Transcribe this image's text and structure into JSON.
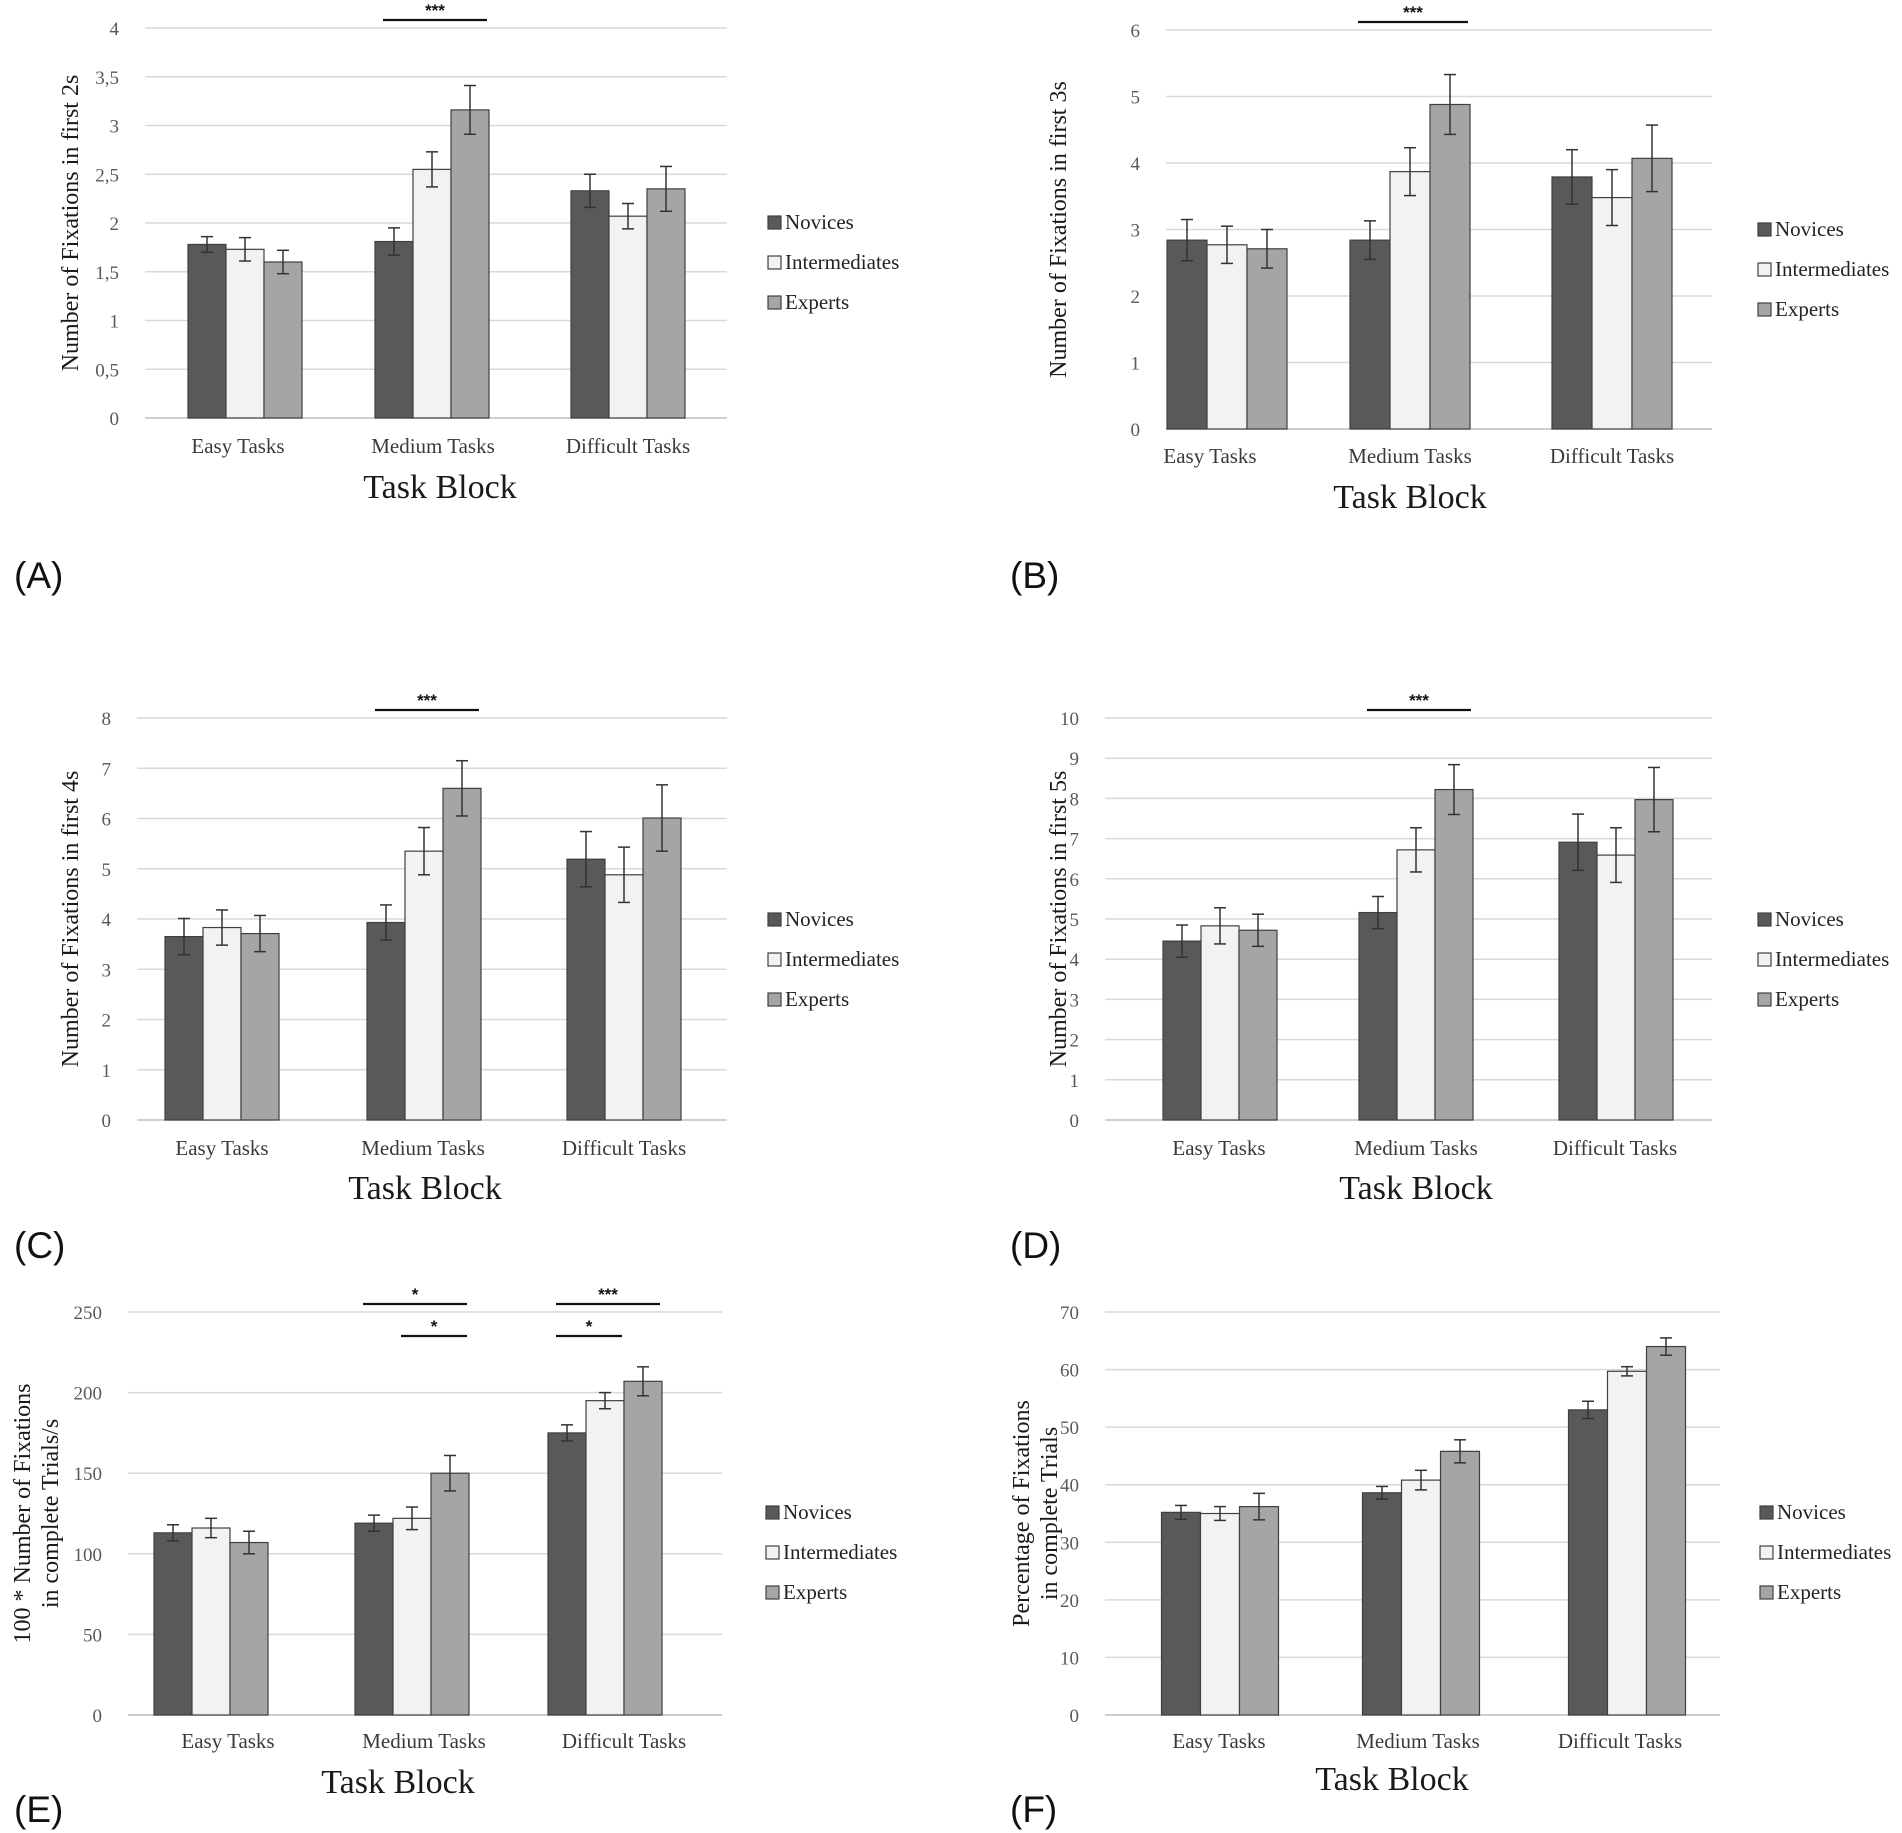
{
  "series_names": [
    "Novices",
    "Intermediates",
    "Experts"
  ],
  "colors": {
    "novices": "#595959",
    "intermediates": "#f2f2f2",
    "experts": "#a5a5a5",
    "grid": "#d9d9d9",
    "bar_stroke": "#3f3f3f"
  },
  "chart_data": [
    {
      "panel": "(A)",
      "type": "bar",
      "categories": [
        "Easy Tasks",
        "Medium Tasks",
        "Difficult Tasks"
      ],
      "xlabel": "Task Block",
      "ylabel": [
        "Number of Fixations in first 2s"
      ],
      "ylim": [
        0,
        4
      ],
      "yticks": [
        "0",
        "0,5",
        "1",
        "1,5",
        "2",
        "2,5",
        "3",
        "3,5",
        "4"
      ],
      "series": [
        {
          "name": "Novices",
          "values": [
            1.78,
            1.81,
            2.33
          ],
          "errors": [
            0.08,
            0.14,
            0.17
          ]
        },
        {
          "name": "Intermediates",
          "values": [
            1.73,
            2.55,
            2.07
          ],
          "errors": [
            0.12,
            0.18,
            0.13
          ]
        },
        {
          "name": "Experts",
          "values": [
            1.6,
            3.16,
            2.35
          ],
          "errors": [
            0.12,
            0.25,
            0.23
          ]
        }
      ],
      "annotations": [
        {
          "category": 1,
          "from": 0,
          "to": 2,
          "label": "***"
        }
      ]
    },
    {
      "panel": "(B)",
      "type": "bar",
      "categories": [
        "Easy Tasks",
        "Medium Tasks",
        "Difficult Tasks"
      ],
      "xlabel": "Task Block",
      "ylabel": [
        "Number of Fixations in first 3s"
      ],
      "ylim": [
        0,
        6
      ],
      "yticks": [
        "0",
        "1",
        "2",
        "3",
        "4",
        "5",
        "6"
      ],
      "series": [
        {
          "name": "Novices",
          "values": [
            2.84,
            2.84,
            3.79
          ],
          "errors": [
            0.31,
            0.29,
            0.41
          ]
        },
        {
          "name": "Intermediates",
          "values": [
            2.77,
            3.87,
            3.48
          ],
          "errors": [
            0.28,
            0.36,
            0.42
          ]
        },
        {
          "name": "Experts",
          "values": [
            2.71,
            4.88,
            4.07
          ],
          "errors": [
            0.29,
            0.45,
            0.5
          ]
        }
      ],
      "annotations": [
        {
          "category": 1,
          "from": 0,
          "to": 2,
          "label": "***"
        }
      ]
    },
    {
      "panel": "(C)",
      "type": "bar",
      "categories": [
        "Easy Tasks",
        "Medium Tasks",
        "Difficult Tasks"
      ],
      "xlabel": "Task Block",
      "ylabel": [
        "Number of Fixations in first 4s"
      ],
      "ylim": [
        0,
        8
      ],
      "yticks": [
        "0",
        "1",
        "2",
        "3",
        "4",
        "5",
        "6",
        "7",
        "8"
      ],
      "series": [
        {
          "name": "Novices",
          "values": [
            3.65,
            3.93,
            5.19
          ],
          "errors": [
            0.36,
            0.35,
            0.55
          ]
        },
        {
          "name": "Intermediates",
          "values": [
            3.83,
            5.35,
            4.88
          ],
          "errors": [
            0.35,
            0.47,
            0.55
          ]
        },
        {
          "name": "Experts",
          "values": [
            3.71,
            6.6,
            6.01
          ],
          "errors": [
            0.36,
            0.55,
            0.66
          ]
        }
      ],
      "annotations": [
        {
          "category": 1,
          "from": 0,
          "to": 2,
          "label": "***"
        }
      ]
    },
    {
      "panel": "(D)",
      "type": "bar",
      "categories": [
        "Easy Tasks",
        "Medium Tasks",
        "Difficult Tasks"
      ],
      "xlabel": "Task Block",
      "ylabel": [
        "Number of Fixations in first 5s"
      ],
      "ylim": [
        0,
        10
      ],
      "yticks": [
        "0",
        "1",
        "2",
        "3",
        "4",
        "5",
        "6",
        "7",
        "8",
        "9",
        "10"
      ],
      "series": [
        {
          "name": "Novices",
          "values": [
            4.45,
            5.16,
            6.91
          ],
          "errors": [
            0.4,
            0.4,
            0.7
          ]
        },
        {
          "name": "Intermediates",
          "values": [
            4.83,
            6.72,
            6.59
          ],
          "errors": [
            0.45,
            0.55,
            0.68
          ]
        },
        {
          "name": "Experts",
          "values": [
            4.72,
            8.22,
            7.97
          ],
          "errors": [
            0.4,
            0.62,
            0.8
          ]
        }
      ],
      "annotations": [
        {
          "category": 1,
          "from": 0,
          "to": 2,
          "label": "***"
        }
      ]
    },
    {
      "panel": "(E)",
      "type": "bar",
      "categories": [
        "Easy Tasks",
        "Medium Tasks",
        "Difficult Tasks"
      ],
      "xlabel": "Task Block",
      "ylabel": [
        "100 * Number of Fixations",
        "in complete Trials/s"
      ],
      "ylim": [
        0,
        250
      ],
      "yticks": [
        "0",
        "50",
        "100",
        "150",
        "200",
        "250"
      ],
      "series": [
        {
          "name": "Novices",
          "values": [
            113,
            119,
            175
          ],
          "errors": [
            5,
            5,
            5
          ]
        },
        {
          "name": "Intermediates",
          "values": [
            116,
            122,
            195
          ],
          "errors": [
            6,
            7,
            5
          ]
        },
        {
          "name": "Experts",
          "values": [
            107,
            150,
            207
          ],
          "errors": [
            7,
            11,
            9
          ]
        }
      ],
      "annotations": [
        {
          "category": 1,
          "from": 0,
          "to": 2,
          "label": "*",
          "level": 0
        },
        {
          "category": 1,
          "from": 1,
          "to": 2,
          "label": "*",
          "level": 1
        },
        {
          "category": 2,
          "from": 0,
          "to": 2,
          "label": "***",
          "level": 0
        },
        {
          "category": 2,
          "from": 0,
          "to": 1,
          "label": "*",
          "level": 1
        }
      ]
    },
    {
      "panel": "(F)",
      "type": "bar",
      "categories": [
        "Easy Tasks",
        "Medium Tasks",
        "Difficult Tasks"
      ],
      "xlabel": "Task Block",
      "ylabel": [
        "Percentage of Fixations",
        "in complete Trials"
      ],
      "ylim": [
        0,
        70
      ],
      "yticks": [
        "0",
        "10",
        "20",
        "30",
        "40",
        "50",
        "60",
        "70"
      ],
      "series": [
        {
          "name": "Novices",
          "values": [
            35.2,
            38.6,
            53.0
          ],
          "errors": [
            1.2,
            1.1,
            1.5
          ]
        },
        {
          "name": "Intermediates",
          "values": [
            35.0,
            40.8,
            59.7
          ],
          "errors": [
            1.2,
            1.7,
            0.8
          ]
        },
        {
          "name": "Experts",
          "values": [
            36.2,
            45.8,
            64.0
          ],
          "errors": [
            2.3,
            2.0,
            1.5
          ]
        }
      ],
      "annotations": []
    }
  ]
}
